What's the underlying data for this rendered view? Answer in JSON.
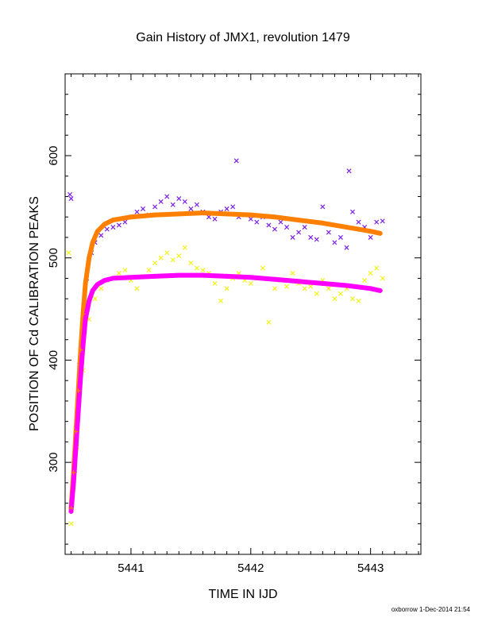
{
  "chart_data": {
    "type": "scatter",
    "title": "Gain History of JMX1, revolution 1479",
    "xlabel": "TIME IN IJD",
    "ylabel": "POSITION OF Cd CALIBRATION PEAKS",
    "xlim": [
      5440.45,
      5443.42
    ],
    "ylim": [
      210,
      680
    ],
    "x_ticks": [
      5441,
      5442,
      5443
    ],
    "y_ticks": [
      300,
      400,
      500,
      600
    ],
    "grid": false,
    "legend": "none",
    "footer": "oxborrow 1-Dec-2014 21:54",
    "colors": {
      "upper_points": "#7a1fe6",
      "lower_points": "#f2f21a",
      "upper_fit": "#ff8000",
      "lower_fit": "#ff00ff",
      "upper_fit_markers": "#ff8000",
      "lower_fit_markers": "#ff00ff"
    },
    "series": [
      {
        "values": [
          [
            5440.49,
            562
          ],
          [
            5440.5,
            558
          ],
          [
            5440.53,
            292
          ],
          [
            5440.55,
            350
          ],
          [
            5440.57,
            395
          ],
          [
            5440.6,
            440
          ],
          [
            5440.63,
            480
          ],
          [
            5440.67,
            505
          ],
          [
            5440.7,
            515
          ],
          [
            5440.75,
            522
          ],
          [
            5440.8,
            528
          ],
          [
            5440.85,
            530
          ],
          [
            5440.9,
            532
          ],
          [
            5440.95,
            535
          ],
          [
            5441.0,
            540
          ],
          [
            5441.05,
            545
          ],
          [
            5441.1,
            548
          ],
          [
            5441.15,
            542
          ],
          [
            5441.2,
            550
          ],
          [
            5441.25,
            555
          ],
          [
            5441.3,
            560
          ],
          [
            5441.35,
            552
          ],
          [
            5441.4,
            558
          ],
          [
            5441.45,
            555
          ],
          [
            5441.5,
            548
          ],
          [
            5441.55,
            552
          ],
          [
            5441.6,
            545
          ],
          [
            5441.65,
            540
          ],
          [
            5441.7,
            538
          ],
          [
            5441.75,
            545
          ],
          [
            5441.8,
            548
          ],
          [
            5441.85,
            550
          ],
          [
            5441.88,
            595
          ],
          [
            5441.9,
            540
          ],
          [
            5441.95,
            542
          ],
          [
            5442.0,
            538
          ],
          [
            5442.05,
            535
          ],
          [
            5442.1,
            540
          ],
          [
            5442.15,
            532
          ],
          [
            5442.2,
            528
          ],
          [
            5442.25,
            535
          ],
          [
            5442.3,
            530
          ],
          [
            5442.35,
            520
          ],
          [
            5442.4,
            525
          ],
          [
            5442.45,
            530
          ],
          [
            5442.5,
            520
          ],
          [
            5442.55,
            518
          ],
          [
            5442.6,
            550
          ],
          [
            5442.65,
            525
          ],
          [
            5442.7,
            515
          ],
          [
            5442.75,
            520
          ],
          [
            5442.8,
            510
          ],
          [
            5442.82,
            585
          ],
          [
            5442.85,
            545
          ],
          [
            5442.9,
            535
          ],
          [
            5442.95,
            530
          ],
          [
            5443.0,
            520
          ],
          [
            5443.05,
            535
          ],
          [
            5443.1,
            536
          ]
        ]
      },
      {
        "values": [
          [
            5440.48,
            505
          ],
          [
            5440.5,
            240
          ],
          [
            5440.55,
            315
          ],
          [
            5440.6,
            390
          ],
          [
            5440.65,
            440
          ],
          [
            5440.7,
            460
          ],
          [
            5440.75,
            470
          ],
          [
            5440.8,
            478
          ],
          [
            5440.85,
            480
          ],
          [
            5440.9,
            485
          ],
          [
            5440.95,
            488
          ],
          [
            5441.0,
            478
          ],
          [
            5441.05,
            470
          ],
          [
            5441.1,
            482
          ],
          [
            5441.15,
            488
          ],
          [
            5441.2,
            495
          ],
          [
            5441.25,
            500
          ],
          [
            5441.3,
            505
          ],
          [
            5441.35,
            498
          ],
          [
            5441.4,
            502
          ],
          [
            5441.45,
            510
          ],
          [
            5441.5,
            495
          ],
          [
            5441.55,
            490
          ],
          [
            5441.6,
            488
          ],
          [
            5441.65,
            485
          ],
          [
            5441.7,
            475
          ],
          [
            5441.75,
            458
          ],
          [
            5441.8,
            470
          ],
          [
            5441.85,
            480
          ],
          [
            5441.9,
            485
          ],
          [
            5441.95,
            478
          ],
          [
            5442.0,
            475
          ],
          [
            5442.05,
            480
          ],
          [
            5442.1,
            490
          ],
          [
            5442.15,
            437
          ],
          [
            5442.2,
            470
          ],
          [
            5442.25,
            478
          ],
          [
            5442.3,
            472
          ],
          [
            5442.35,
            485
          ],
          [
            5442.4,
            475
          ],
          [
            5442.45,
            470
          ],
          [
            5442.5,
            472
          ],
          [
            5442.55,
            465
          ],
          [
            5442.6,
            478
          ],
          [
            5442.65,
            470
          ],
          [
            5442.7,
            460
          ],
          [
            5442.75,
            465
          ],
          [
            5442.8,
            470
          ],
          [
            5442.85,
            460
          ],
          [
            5442.9,
            458
          ],
          [
            5442.95,
            478
          ],
          [
            5443.0,
            485
          ],
          [
            5443.05,
            490
          ],
          [
            5443.1,
            480
          ]
        ]
      },
      {
        "values": [
          [
            5440.5,
            255
          ],
          [
            5440.52,
            290
          ],
          [
            5440.54,
            330
          ],
          [
            5440.56,
            370
          ],
          [
            5440.58,
            410
          ],
          [
            5440.6,
            445
          ],
          [
            5440.62,
            475
          ],
          [
            5440.65,
            500
          ],
          [
            5440.68,
            515
          ],
          [
            5440.72,
            526
          ],
          [
            5440.78,
            533
          ],
          [
            5440.85,
            537
          ],
          [
            5441.0,
            540
          ],
          [
            5441.2,
            542
          ],
          [
            5441.4,
            543
          ],
          [
            5441.6,
            544
          ],
          [
            5441.8,
            543
          ],
          [
            5442.0,
            542
          ],
          [
            5442.2,
            540
          ],
          [
            5442.4,
            537
          ],
          [
            5442.6,
            534
          ],
          [
            5442.8,
            530
          ],
          [
            5443.0,
            526
          ],
          [
            5443.08,
            524
          ]
        ]
      },
      {
        "values": [
          [
            5440.5,
            252
          ],
          [
            5440.52,
            280
          ],
          [
            5440.54,
            315
          ],
          [
            5440.56,
            350
          ],
          [
            5440.58,
            385
          ],
          [
            5440.6,
            415
          ],
          [
            5440.62,
            440
          ],
          [
            5440.65,
            458
          ],
          [
            5440.68,
            468
          ],
          [
            5440.72,
            474
          ],
          [
            5440.78,
            478
          ],
          [
            5440.85,
            480
          ],
          [
            5441.0,
            481
          ],
          [
            5441.2,
            482
          ],
          [
            5441.4,
            483
          ],
          [
            5441.6,
            483
          ],
          [
            5441.8,
            482
          ],
          [
            5442.0,
            481
          ],
          [
            5442.2,
            479
          ],
          [
            5442.4,
            477
          ],
          [
            5442.6,
            475
          ],
          [
            5442.8,
            473
          ],
          [
            5443.0,
            470
          ],
          [
            5443.08,
            468
          ]
        ]
      }
    ]
  }
}
